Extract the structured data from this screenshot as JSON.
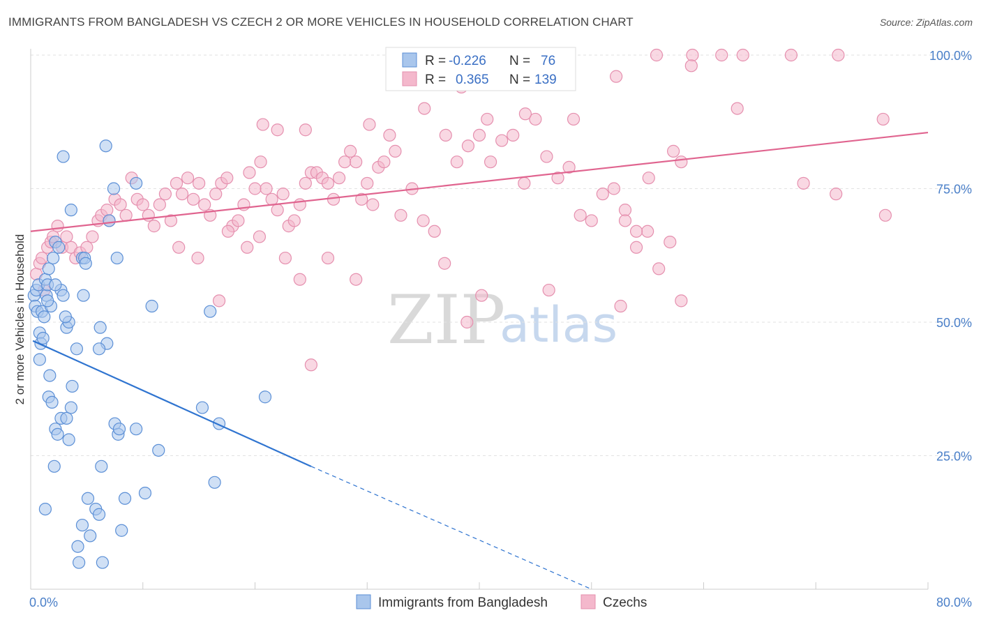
{
  "title": "IMMIGRANTS FROM BANGLADESH VS CZECH 2 OR MORE VEHICLES IN HOUSEHOLD CORRELATION CHART",
  "source": "Source: ZipAtlas.com",
  "watermark": {
    "zip": "ZIP",
    "atlas": "atlas"
  },
  "colors": {
    "blue_fill": "#a9c6ec",
    "blue_stroke": "#5b8fd6",
    "blue_line": "#2f74d0",
    "pink_fill": "#f4b8cc",
    "pink_stroke": "#e58fae",
    "pink_line": "#e0648f",
    "grid": "#e2e2e2",
    "tick_text": "#4a7fc8"
  },
  "legend": {
    "row1": {
      "r_label": "R =",
      "r_value": "-0.226",
      "n_label": "N =",
      "n_value": "76"
    },
    "row2": {
      "r_label": "R =",
      "r_value": "0.365",
      "n_label": "N =",
      "n_value": "139"
    }
  },
  "chart_data": {
    "type": "scatter",
    "title": "IMMIGRANTS FROM BANGLADESH VS CZECH 2 OR MORE VEHICLES IN HOUSEHOLD CORRELATION CHART",
    "xlabel": "",
    "ylabel": "2 or more Vehicles in Household",
    "xlim": [
      0,
      80
    ],
    "ylim": [
      0,
      100
    ],
    "x_tick_labels": [
      "0.0%",
      "80.0%"
    ],
    "y_ticks": [
      25,
      50,
      75,
      100
    ],
    "y_tick_labels": [
      "25.0%",
      "50.0%",
      "75.0%",
      "100.0%"
    ],
    "grid": true,
    "legend_position": "top-center",
    "series": [
      {
        "name": "Immigrants from Bangladesh",
        "color": "#5b8fd6",
        "trend": {
          "x": [
            0.2,
            25,
            50
          ],
          "y": [
            46.5,
            23,
            0
          ]
        },
        "points": [
          [
            0.3,
            55
          ],
          [
            0.4,
            53
          ],
          [
            0.5,
            56
          ],
          [
            0.6,
            52
          ],
          [
            0.7,
            57
          ],
          [
            0.8,
            48
          ],
          [
            0.9,
            46
          ],
          [
            1.0,
            52
          ],
          [
            1.1,
            47
          ],
          [
            1.2,
            51
          ],
          [
            1.3,
            58
          ],
          [
            1.4,
            55
          ],
          [
            1.5,
            57
          ],
          [
            1.6,
            60
          ],
          [
            1.8,
            53
          ],
          [
            2.0,
            62
          ],
          [
            2.2,
            65
          ],
          [
            2.5,
            64
          ],
          [
            2.7,
            56
          ],
          [
            2.9,
            55
          ],
          [
            0.8,
            43
          ],
          [
            1.7,
            40
          ],
          [
            1.6,
            36
          ],
          [
            1.9,
            35
          ],
          [
            2.2,
            30
          ],
          [
            2.4,
            29
          ],
          [
            2.7,
            32
          ],
          [
            3.2,
            32
          ],
          [
            3.4,
            28
          ],
          [
            3.6,
            34
          ],
          [
            3.7,
            38
          ],
          [
            4.1,
            45
          ],
          [
            3.2,
            49
          ],
          [
            3.4,
            50
          ],
          [
            3.1,
            51
          ],
          [
            2.9,
            81
          ],
          [
            3.6,
            71
          ],
          [
            4.6,
            62
          ],
          [
            4.7,
            55
          ],
          [
            6.7,
            83
          ],
          [
            7.4,
            75
          ],
          [
            7.0,
            69
          ],
          [
            7.7,
            62
          ],
          [
            9.4,
            76
          ],
          [
            10.8,
            53
          ],
          [
            6.2,
            49
          ],
          [
            6.8,
            46
          ],
          [
            6.1,
            45
          ],
          [
            7.5,
            31
          ],
          [
            7.8,
            29
          ],
          [
            7.9,
            30
          ],
          [
            9.4,
            30
          ],
          [
            11.4,
            26
          ],
          [
            6.3,
            23
          ],
          [
            2.1,
            23
          ],
          [
            1.3,
            15
          ],
          [
            5.1,
            17
          ],
          [
            5.8,
            15
          ],
          [
            6.1,
            14
          ],
          [
            4.6,
            12
          ],
          [
            5.3,
            10
          ],
          [
            4.2,
            8
          ],
          [
            4.3,
            5
          ],
          [
            6.4,
            5
          ],
          [
            8.1,
            11
          ],
          [
            8.4,
            17
          ],
          [
            10.2,
            18
          ],
          [
            16.4,
            20
          ],
          [
            15.3,
            34
          ],
          [
            16.8,
            31
          ],
          [
            20.9,
            36
          ],
          [
            16.0,
            52
          ],
          [
            4.8,
            62
          ],
          [
            4.9,
            61
          ],
          [
            2.2,
            57
          ],
          [
            1.5,
            54
          ]
        ]
      },
      {
        "name": "Czechs",
        "color": "#e58fae",
        "trend": {
          "x": [
            0,
            80
          ],
          "y": [
            67,
            85.5
          ]
        },
        "points": [
          [
            0.5,
            59
          ],
          [
            0.8,
            61
          ],
          [
            1.0,
            62
          ],
          [
            1.2,
            56
          ],
          [
            1.5,
            64
          ],
          [
            1.8,
            65
          ],
          [
            2.0,
            66
          ],
          [
            2.4,
            68
          ],
          [
            2.8,
            64
          ],
          [
            3.2,
            66
          ],
          [
            3.6,
            64
          ],
          [
            4.0,
            62
          ],
          [
            4.4,
            63
          ],
          [
            5.0,
            64
          ],
          [
            5.5,
            66
          ],
          [
            6.0,
            69
          ],
          [
            6.3,
            70
          ],
          [
            6.8,
            71
          ],
          [
            7.0,
            69
          ],
          [
            7.5,
            73
          ],
          [
            8.0,
            72
          ],
          [
            8.5,
            70
          ],
          [
            9.0,
            77
          ],
          [
            9.5,
            73
          ],
          [
            10.0,
            72
          ],
          [
            10.5,
            70
          ],
          [
            11.0,
            68
          ],
          [
            11.5,
            72
          ],
          [
            12.0,
            74
          ],
          [
            12.5,
            69
          ],
          [
            13.0,
            76
          ],
          [
            13.5,
            74
          ],
          [
            14.0,
            77
          ],
          [
            14.5,
            73
          ],
          [
            15.0,
            76
          ],
          [
            15.5,
            72
          ],
          [
            16.0,
            70
          ],
          [
            16.5,
            74
          ],
          [
            17.0,
            76
          ],
          [
            17.5,
            77
          ],
          [
            18.0,
            68
          ],
          [
            18.5,
            69
          ],
          [
            19.0,
            72
          ],
          [
            19.5,
            78
          ],
          [
            20.0,
            75
          ],
          [
            20.5,
            80
          ],
          [
            21.0,
            75
          ],
          [
            21.5,
            73
          ],
          [
            22.0,
            71
          ],
          [
            22.5,
            74
          ],
          [
            23.0,
            68
          ],
          [
            23.5,
            69
          ],
          [
            24.0,
            72
          ],
          [
            24.5,
            76
          ],
          [
            25.0,
            78
          ],
          [
            25.5,
            78
          ],
          [
            26.0,
            77
          ],
          [
            26.5,
            76
          ],
          [
            27.0,
            73
          ],
          [
            27.5,
            77
          ],
          [
            28.0,
            80
          ],
          [
            28.5,
            82
          ],
          [
            29.0,
            80
          ],
          [
            29.5,
            73
          ],
          [
            30.0,
            76
          ],
          [
            30.5,
            72
          ],
          [
            31.0,
            79
          ],
          [
            31.5,
            80
          ],
          [
            32.0,
            85
          ],
          [
            32.5,
            82
          ],
          [
            33.0,
            70
          ],
          [
            34.0,
            75
          ],
          [
            35.0,
            69
          ],
          [
            36.0,
            67
          ],
          [
            37.0,
            85
          ],
          [
            38.0,
            80
          ],
          [
            39.0,
            83
          ],
          [
            40.0,
            85
          ],
          [
            41.0,
            80
          ],
          [
            42.0,
            84
          ],
          [
            43.0,
            85
          ],
          [
            44.0,
            76
          ],
          [
            45.0,
            88
          ],
          [
            46.0,
            81
          ],
          [
            47.0,
            77
          ],
          [
            48.0,
            79
          ],
          [
            49.0,
            70
          ],
          [
            50.0,
            69
          ],
          [
            51.0,
            74
          ],
          [
            52.0,
            75
          ],
          [
            53.0,
            71
          ],
          [
            54.0,
            64
          ],
          [
            55.0,
            67
          ],
          [
            56.0,
            60
          ],
          [
            57.0,
            65
          ],
          [
            58.0,
            54
          ],
          [
            52.2,
            96
          ],
          [
            55.8,
            100
          ],
          [
            59.0,
            100
          ],
          [
            63.5,
            100
          ],
          [
            67.8,
            100
          ],
          [
            72.0,
            100
          ],
          [
            61.6,
            100
          ],
          [
            76.0,
            88
          ],
          [
            76.2,
            70
          ],
          [
            68.9,
            76
          ],
          [
            71.8,
            74
          ],
          [
            58.9,
            98
          ],
          [
            63.0,
            90
          ],
          [
            53.0,
            69
          ],
          [
            54.0,
            67
          ],
          [
            35.1,
            90
          ],
          [
            38.4,
            94
          ],
          [
            40.7,
            88
          ],
          [
            20.7,
            87
          ],
          [
            22.0,
            86
          ],
          [
            24.5,
            86
          ],
          [
            30.2,
            87
          ],
          [
            44.1,
            89
          ],
          [
            48.4,
            88
          ],
          [
            57.3,
            82
          ],
          [
            58.0,
            80
          ],
          [
            55.1,
            77
          ],
          [
            52.6,
            53
          ],
          [
            46.2,
            56
          ],
          [
            38.9,
            50
          ],
          [
            25.0,
            42
          ],
          [
            29.0,
            58
          ],
          [
            16.8,
            54
          ],
          [
            13.2,
            64
          ],
          [
            14.9,
            62
          ],
          [
            17.6,
            67
          ],
          [
            19.3,
            64
          ],
          [
            20.4,
            66
          ],
          [
            22.7,
            62
          ],
          [
            24.0,
            58
          ],
          [
            26.5,
            62
          ],
          [
            40.2,
            55
          ],
          [
            36.9,
            61
          ]
        ]
      }
    ]
  },
  "bottom_legend": {
    "item1": "Immigrants from Bangladesh",
    "item2": "Czechs"
  }
}
